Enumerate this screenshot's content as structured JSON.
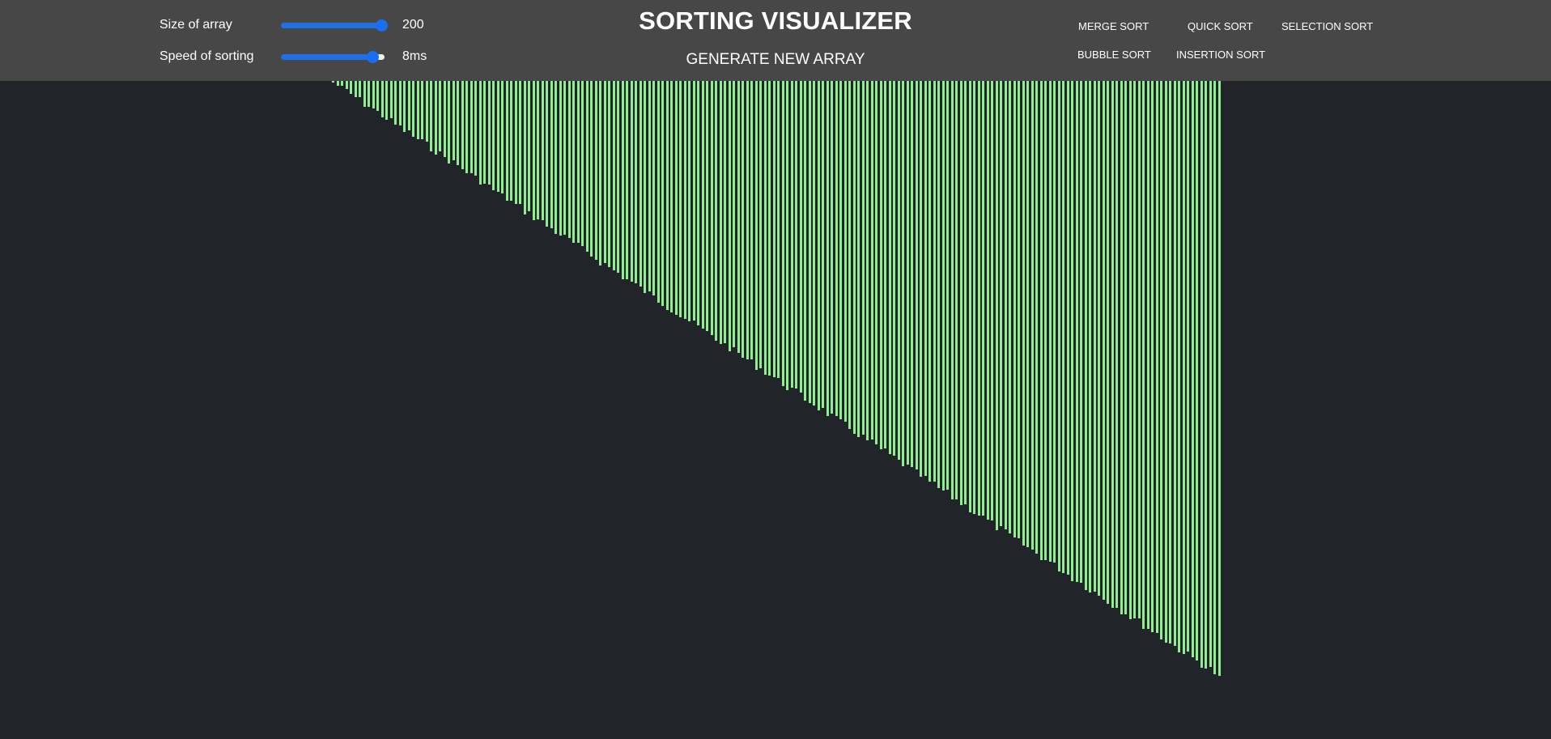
{
  "controls": {
    "size_label": "Size of array",
    "size_value": "200",
    "size_slider_fraction": 0.97,
    "speed_label": "Speed of sorting",
    "speed_value": "8ms",
    "speed_slider_fraction": 0.88
  },
  "header": {
    "title": "SORTING VISUALIZER",
    "generate_label": "GENERATE NEW ARRAY"
  },
  "algorithms": {
    "merge": "MERGE SORT",
    "quick": "QUICK SORT",
    "selection": "SELECTION SORT",
    "bubble": "BUBBLE SORT",
    "insertion": "INSERTION SORT"
  },
  "colors": {
    "accent": "#1a6ff0",
    "bar": "#90ee90",
    "background": "#212428",
    "topbar": "#474747"
  },
  "array": {
    "count": 200,
    "min_value": 2,
    "max_value": 735
  }
}
